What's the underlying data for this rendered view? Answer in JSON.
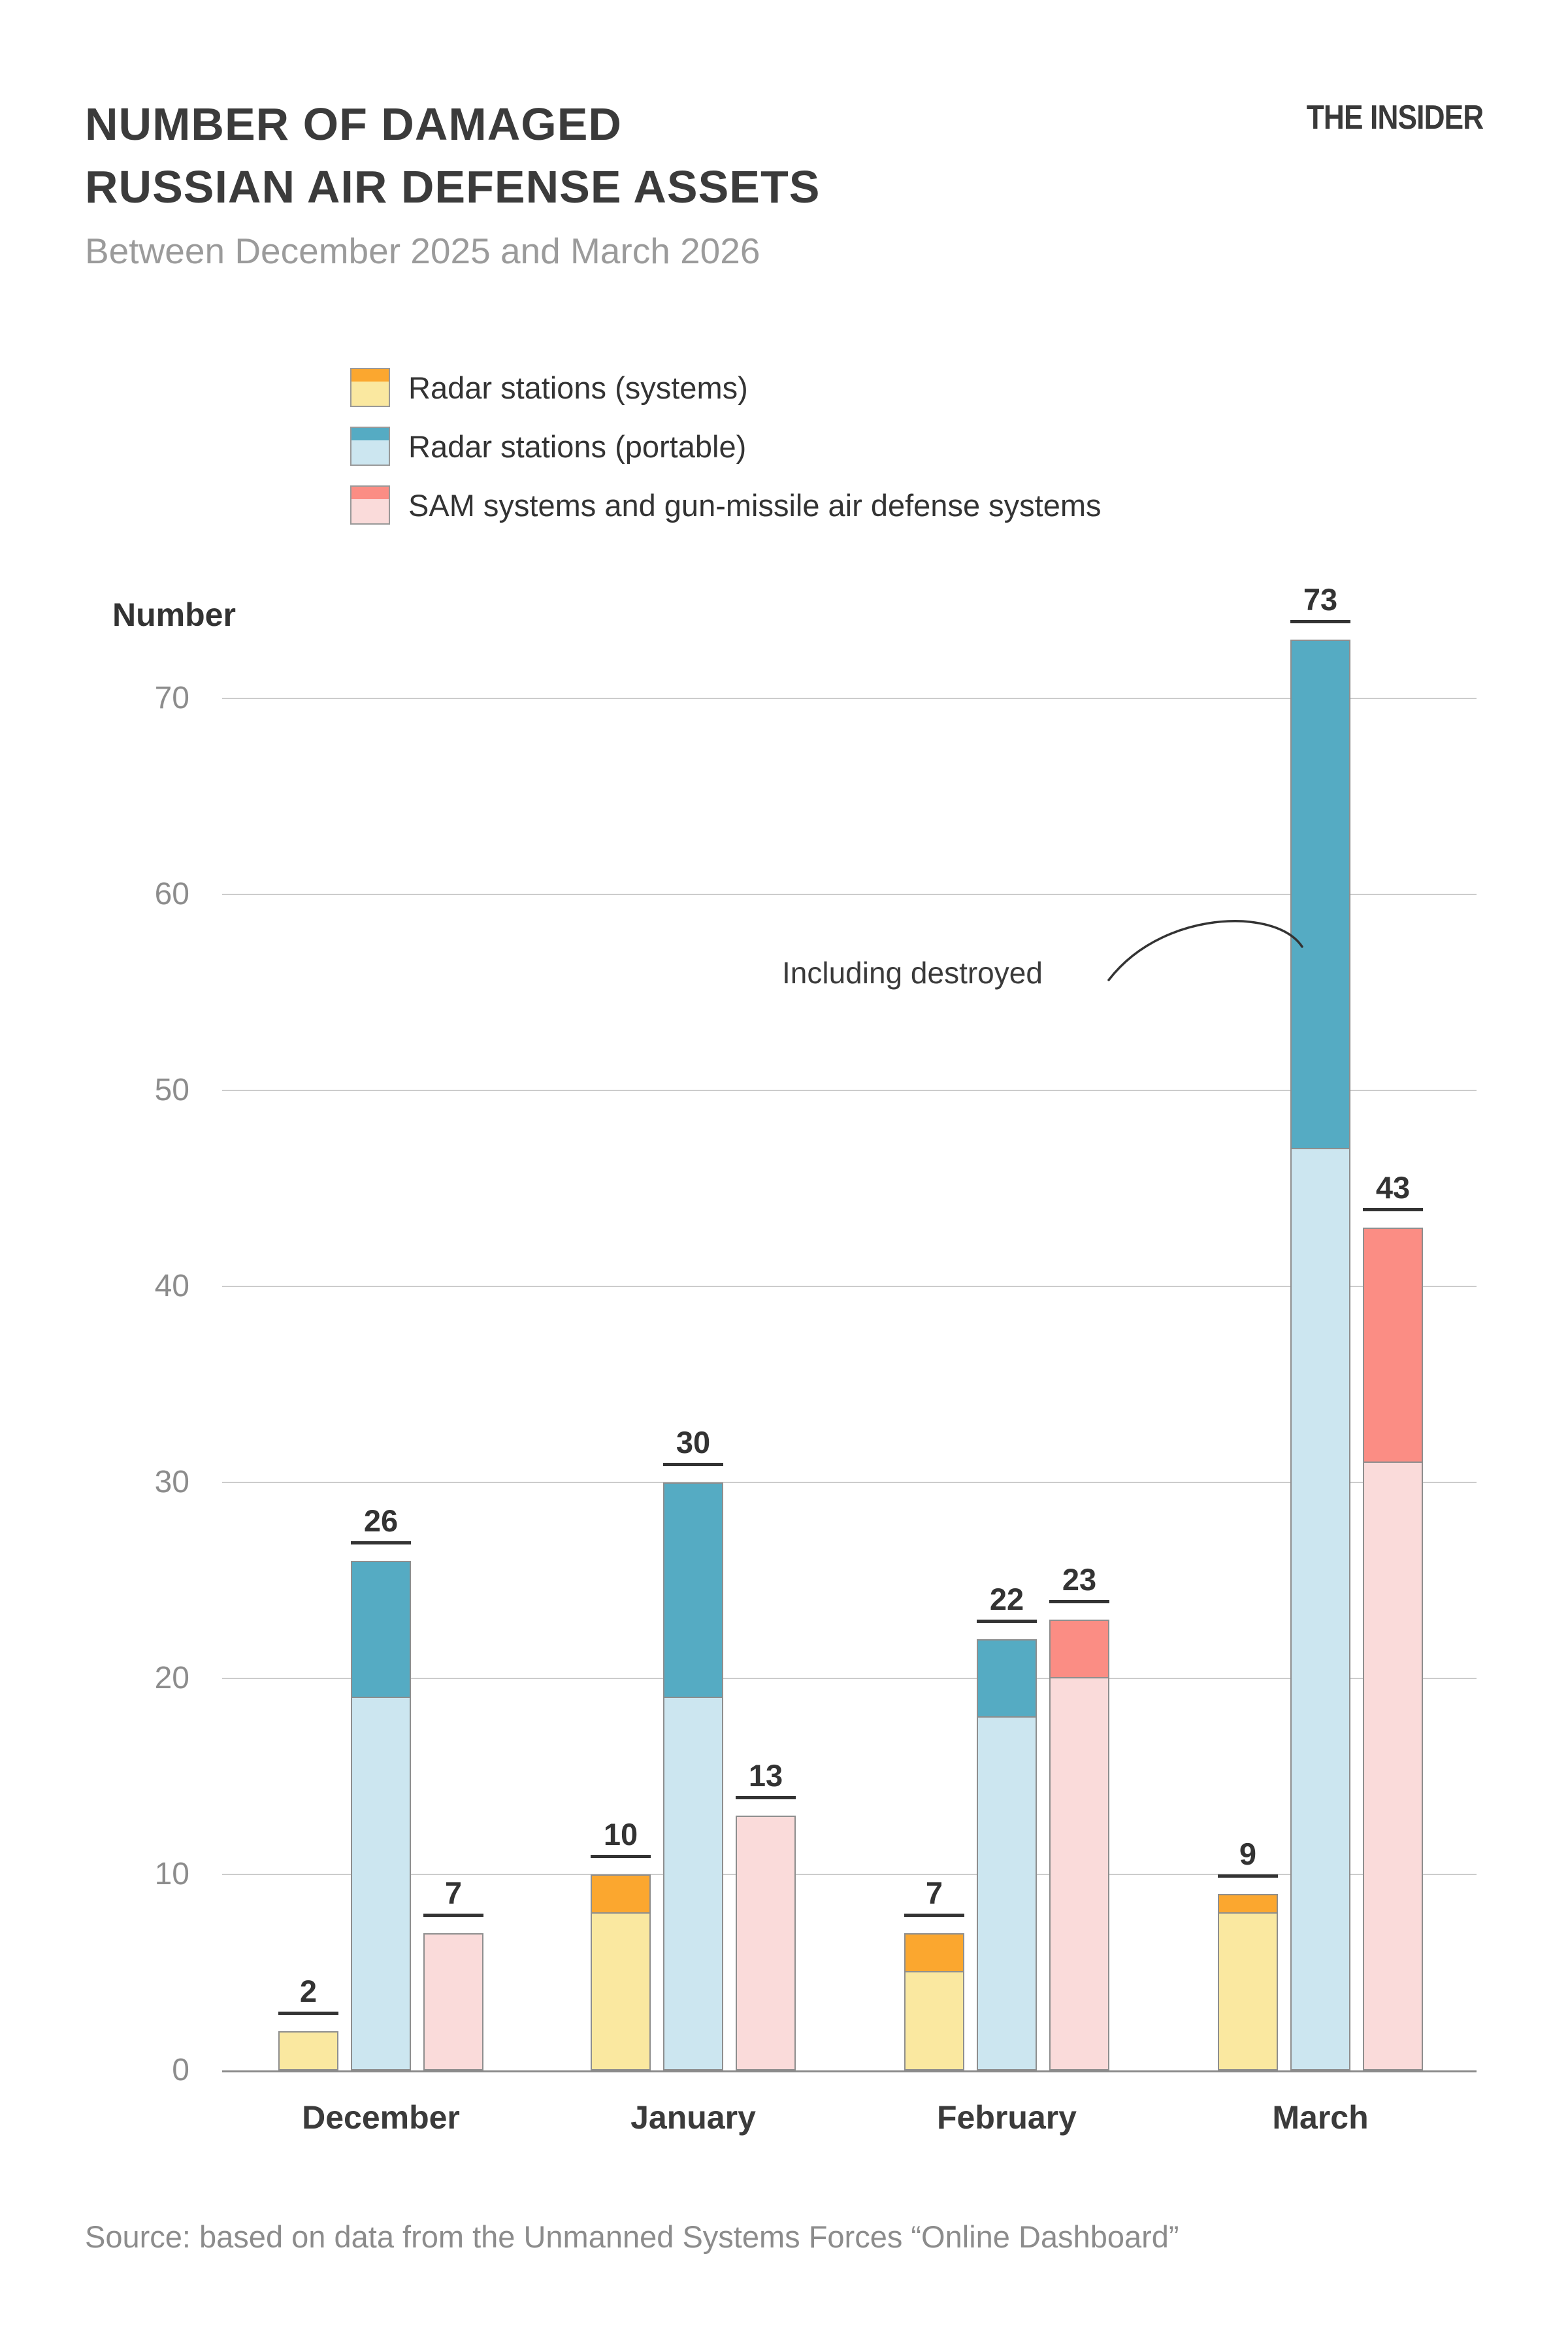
{
  "header": {
    "title_line1": "NUMBER OF DAMAGED",
    "title_line2": "RUSSIAN AIR DEFENSE ASSETS",
    "subtitle": "Between December 2025 and March 2026",
    "logo": "THE INSIDER"
  },
  "annotation": {
    "text": "Including destroyed"
  },
  "source": "Source: based on data from the Unmanned Systems Forces “Online Dashboard”",
  "chart_data": {
    "type": "bar",
    "title": "NUMBER OF DAMAGED RUSSIAN AIR DEFENSE ASSETS",
    "subtitle": "Between December 2025 and March 2026",
    "ylabel": "Number",
    "ylim": [
      0,
      75
    ],
    "yticks": [
      0,
      10,
      20,
      30,
      40,
      50,
      60,
      70
    ],
    "grid": true,
    "legend_position": "top-left",
    "categories": [
      "December",
      "January",
      "February",
      "March"
    ],
    "series": [
      {
        "name": "Radar stations (systems)",
        "color_light": "#FAE8A0",
        "color_dark": "#FBA72F",
        "totals": [
          2,
          10,
          7,
          9
        ],
        "lower_damaged": [
          2,
          8,
          5,
          8
        ],
        "upper_including_destroyed": [
          0,
          2,
          2,
          1
        ]
      },
      {
        "name": "Radar stations (portable)",
        "color_light": "#CCE6F0",
        "color_dark": "#55ABC3",
        "totals": [
          26,
          30,
          22,
          73
        ],
        "lower_damaged": [
          19,
          19,
          18,
          47
        ],
        "upper_including_destroyed": [
          7,
          11,
          4,
          26
        ]
      },
      {
        "name": "SAM systems and gun-missile air defense systems",
        "color_light": "#FADBDA",
        "color_dark": "#FB8D84",
        "totals": [
          7,
          13,
          23,
          43
        ],
        "lower_damaged": [
          7,
          13,
          20,
          31
        ],
        "upper_including_destroyed": [
          0,
          0,
          3,
          12
        ]
      }
    ],
    "annotation": "Including destroyed",
    "annotation_points_to": "upper dark segment of March portable-radar bar"
  }
}
